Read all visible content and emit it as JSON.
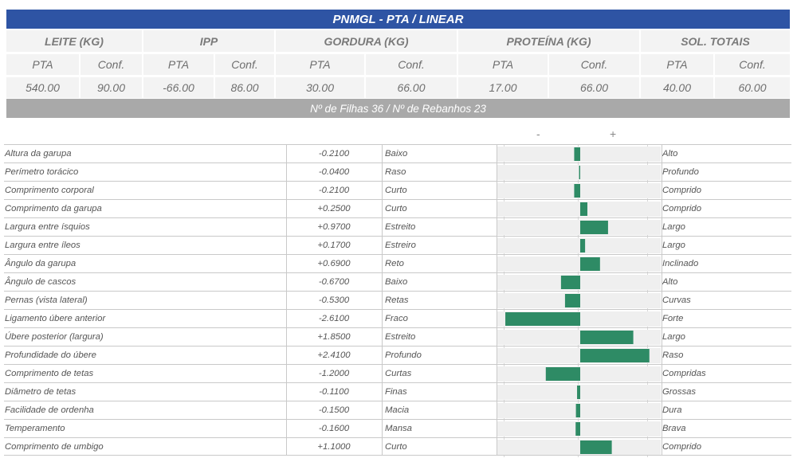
{
  "title": "PNMGL - PTA / LINEAR",
  "groups": [
    {
      "label": "LEITE (KG)",
      "pta_label": "PTA",
      "conf_label": "Conf.",
      "pta": "540.00",
      "conf": "90.00"
    },
    {
      "label": "IPP",
      "pta_label": "PTA",
      "conf_label": "Conf.",
      "pta": "-66.00",
      "conf": "86.00"
    },
    {
      "label": "GORDURA (KG)",
      "pta_label": "PTA",
      "conf_label": "Conf.",
      "pta": "30.00",
      "conf": "66.00"
    },
    {
      "label": "PROTEÍNA (KG)",
      "pta_label": "PTA",
      "conf_label": "Conf.",
      "pta": "17.00",
      "conf": "66.00"
    },
    {
      "label": "SOL. TOTAIS",
      "pta_label": "PTA",
      "conf_label": "Conf.",
      "pta": "40.00",
      "conf": "60.00"
    }
  ],
  "filhas_text": "Nº de Filhas 36 / Nº de Rebanhos 23",
  "axis": {
    "minus": "-",
    "plus": "+"
  },
  "colors": {
    "header_blue": "#2e54a4",
    "bar_green": "#2e8b65",
    "subheader_gray": "#a9a9a9"
  },
  "traits": [
    {
      "name": "Altura da garupa",
      "value": "-0.2100",
      "num": -0.21,
      "low": "Baixo",
      "high": "Alto"
    },
    {
      "name": "Perímetro torácico",
      "value": "-0.0400",
      "num": -0.04,
      "low": "Raso",
      "high": "Profundo"
    },
    {
      "name": "Comprimento corporal",
      "value": "-0.2100",
      "num": -0.21,
      "low": "Curto",
      "high": "Comprido"
    },
    {
      "name": "Comprimento da garupa",
      "value": "+0.2500",
      "num": 0.25,
      "low": "Curto",
      "high": "Comprido"
    },
    {
      "name": "Largura entre ísquios",
      "value": "+0.9700",
      "num": 0.97,
      "low": "Estreito",
      "high": "Largo"
    },
    {
      "name": "Largura entre íleos",
      "value": "+0.1700",
      "num": 0.17,
      "low": "Estreiro",
      "high": "Largo"
    },
    {
      "name": "Ângulo da garupa",
      "value": "+0.6900",
      "num": 0.69,
      "low": "Reto",
      "high": "Inclinado"
    },
    {
      "name": "Ângulo de cascos",
      "value": "-0.6700",
      "num": -0.67,
      "low": "Baixo",
      "high": "Alto"
    },
    {
      "name": "Pernas (vista lateral)",
      "value": "-0.5300",
      "num": -0.53,
      "low": "Retas",
      "high": "Curvas"
    },
    {
      "name": "Ligamento úbere anterior",
      "value": "-2.6100",
      "num": -2.61,
      "low": "Fraco",
      "high": "Forte"
    },
    {
      "name": "Úbere posterior (largura)",
      "value": "+1.8500",
      "num": 1.85,
      "low": "Estreito",
      "high": "Largo"
    },
    {
      "name": "Profundidade do úbere",
      "value": "+2.4100",
      "num": 2.41,
      "low": "Profundo",
      "high": "Raso"
    },
    {
      "name": "Comprimento de tetas",
      "value": "-1.2000",
      "num": -1.2,
      "low": "Curtas",
      "high": "Compridas"
    },
    {
      "name": "Diâmetro de tetas",
      "value": "-0.1100",
      "num": -0.11,
      "low": "Finas",
      "high": "Grossas"
    },
    {
      "name": "Facilidade de ordenha",
      "value": "-0.1500",
      "num": -0.15,
      "low": "Macia",
      "high": "Dura"
    },
    {
      "name": "Temperamento",
      "value": "-0.1600",
      "num": -0.16,
      "low": "Mansa",
      "high": "Brava"
    },
    {
      "name": "Comprimento de umbigo",
      "value": "+1.1000",
      "num": 1.1,
      "low": "Curto",
      "high": "Comprido"
    }
  ]
}
